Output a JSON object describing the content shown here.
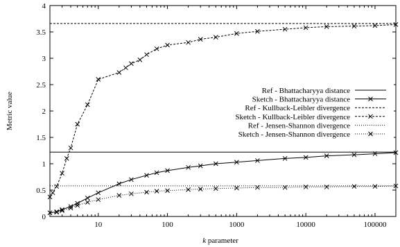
{
  "chart_data": {
    "type": "line",
    "xlabel": "k parameter",
    "xlabel_italic_part": "k",
    "xlabel_rest": " parameter",
    "ylabel": "Metric value",
    "x_scale": "log",
    "xlim": [
      2,
      200000
    ],
    "ylim": [
      0,
      4
    ],
    "x_ticks": [
      10,
      100,
      1000,
      10000,
      100000
    ],
    "x_tick_labels": [
      "10",
      "100",
      "1000",
      "10000",
      "100000"
    ],
    "y_ticks": [
      0,
      0.5,
      1,
      1.5,
      2,
      2.5,
      3,
      3.5,
      4
    ],
    "y_tick_labels": [
      "0",
      "0.5",
      "1",
      "1.5",
      "2",
      "2.5",
      "3",
      "3.5",
      "4"
    ],
    "grid": false,
    "legend_position": "right",
    "series": [
      {
        "name": "Ref - Bhattacharyya distance",
        "kind": "ref",
        "line": "solid",
        "value": 1.22
      },
      {
        "name": "Sketch - Bhattacharyya distance",
        "kind": "sketch",
        "line": "solid",
        "x": [
          2,
          2.5,
          3,
          4,
          5,
          7,
          10,
          20,
          30,
          50,
          70,
          100,
          200,
          300,
          500,
          1000,
          2000,
          5000,
          10000,
          20000,
          50000,
          100000,
          200000
        ],
        "y": [
          0.07,
          0.09,
          0.13,
          0.19,
          0.25,
          0.35,
          0.45,
          0.62,
          0.7,
          0.78,
          0.83,
          0.87,
          0.93,
          0.96,
          1.0,
          1.03,
          1.06,
          1.1,
          1.12,
          1.15,
          1.17,
          1.19,
          1.21
        ]
      },
      {
        "name": "Ref - Kullback-Leibler divergence",
        "kind": "ref",
        "line": "dashed",
        "value": 3.66
      },
      {
        "name": "Sketch - Kullback-Leibler divergence",
        "kind": "sketch",
        "line": "dashed",
        "x": [
          2,
          2.2,
          2.5,
          3,
          3.5,
          4,
          5,
          7,
          10,
          20,
          25,
          30,
          40,
          50,
          70,
          100,
          200,
          300,
          500,
          1000,
          2000,
          5000,
          10000,
          20000,
          50000,
          100000,
          200000
        ],
        "y": [
          0.37,
          0.45,
          0.57,
          0.82,
          1.1,
          1.3,
          1.75,
          2.12,
          2.6,
          2.73,
          2.82,
          2.9,
          2.97,
          3.07,
          3.18,
          3.25,
          3.3,
          3.36,
          3.4,
          3.47,
          3.51,
          3.55,
          3.58,
          3.6,
          3.61,
          3.62,
          3.64
        ]
      },
      {
        "name": "Ref - Jensen-Shannon divergence",
        "kind": "ref",
        "line": "dotted",
        "value": 0.58
      },
      {
        "name": "Sketch - Jensen-Shannon divergence",
        "kind": "sketch",
        "line": "dotted",
        "x": [
          2,
          2.5,
          3,
          4,
          5,
          7,
          10,
          20,
          30,
          50,
          70,
          100,
          200,
          300,
          500,
          1000,
          2000,
          5000,
          10000,
          20000,
          50000,
          100000,
          200000
        ],
        "y": [
          0.07,
          0.08,
          0.11,
          0.16,
          0.21,
          0.27,
          0.32,
          0.4,
          0.43,
          0.46,
          0.48,
          0.49,
          0.51,
          0.52,
          0.53,
          0.54,
          0.55,
          0.55,
          0.56,
          0.56,
          0.57,
          0.57,
          0.58
        ]
      }
    ]
  }
}
